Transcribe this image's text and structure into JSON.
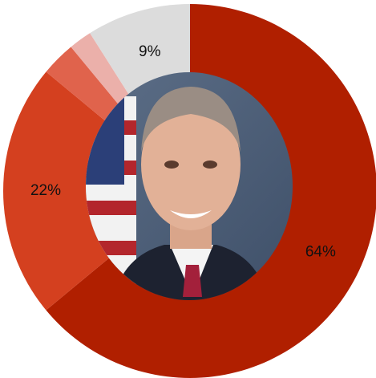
{
  "chart_data": {
    "type": "pie",
    "values": [
      64,
      22,
      3,
      2,
      9
    ],
    "value_labels": [
      "64%",
      "22%",
      null,
      null,
      "9%"
    ],
    "colors": [
      "#b01f00",
      "#d4401f",
      "#e0634c",
      "#ebb0aa",
      "#dcdcdc"
    ]
  }
}
